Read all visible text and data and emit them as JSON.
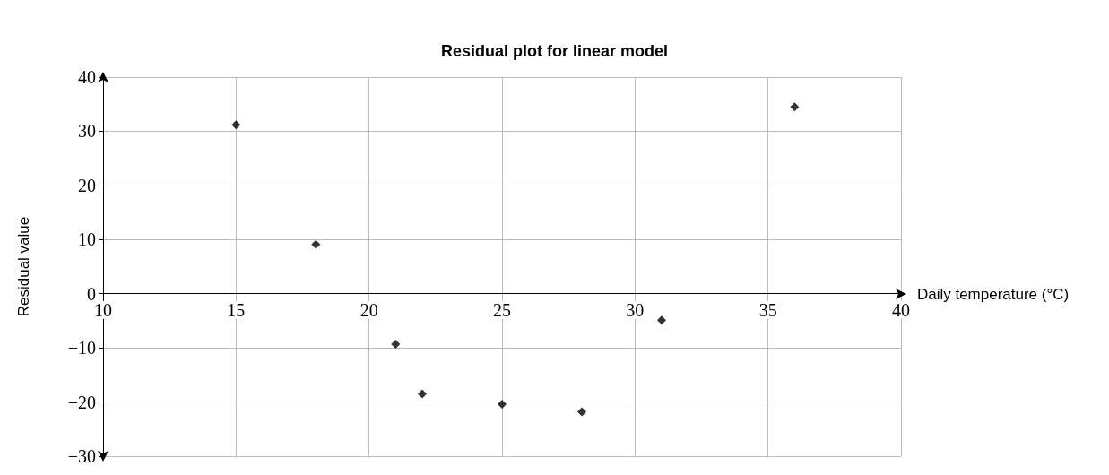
{
  "chart_data": {
    "type": "scatter",
    "title": "Residual plot for linear model",
    "xlabel": "Daily temperature (°C)",
    "ylabel": "Residual value",
    "x": [
      15,
      18,
      21,
      22,
      25,
      28,
      31,
      36
    ],
    "values": [
      31.2,
      9.1,
      -9.3,
      -18.5,
      -20.4,
      -21.8,
      -4.9,
      34.5
    ],
    "color": "#000000",
    "marker": "diamond",
    "grid": true,
    "xlim": [
      10,
      40
    ],
    "xticks": [
      10,
      15,
      20,
      25,
      30,
      35,
      40
    ],
    "ylim": [
      -30,
      40
    ],
    "yticks": [
      {
        "value": -30,
        "label": "−30"
      },
      {
        "value": -20,
        "label": "−20"
      },
      {
        "value": -10,
        "label": "−10"
      },
      0,
      10,
      20,
      30,
      40
    ]
  }
}
